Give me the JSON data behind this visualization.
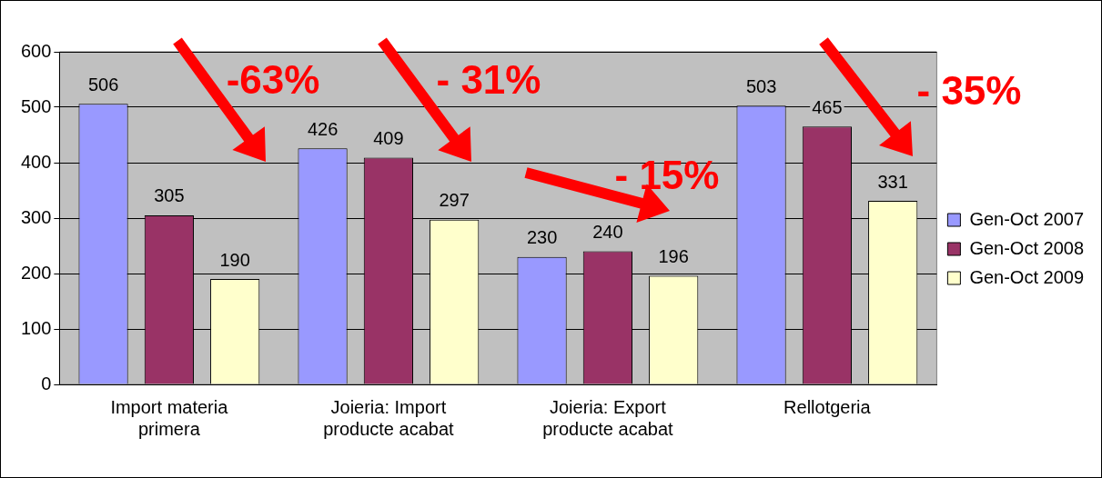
{
  "chart_data": {
    "type": "bar",
    "categories": [
      "Import materia primera",
      "Joieria: Import producte acabat",
      "Joieria: Export producte acabat",
      "Rellotgeria"
    ],
    "series": [
      {
        "name": "Gen-Oct 2007",
        "color": "#9999ff",
        "values": [
          506,
          426,
          230,
          503
        ]
      },
      {
        "name": "Gen-Oct 2008",
        "color": "#993366",
        "values": [
          305,
          409,
          240,
          465
        ]
      },
      {
        "name": "Gen-Oct 2009",
        "color": "#ffffcc",
        "values": [
          190,
          297,
          196,
          331
        ]
      }
    ],
    "ylim": [
      0,
      600
    ],
    "yticks": [
      0,
      100,
      200,
      300,
      400,
      500,
      600
    ],
    "grid": "y",
    "legend": "right",
    "data_labels": true,
    "annotations": [
      "-63%",
      "- 31%",
      "- 15%",
      "- 35%"
    ]
  }
}
